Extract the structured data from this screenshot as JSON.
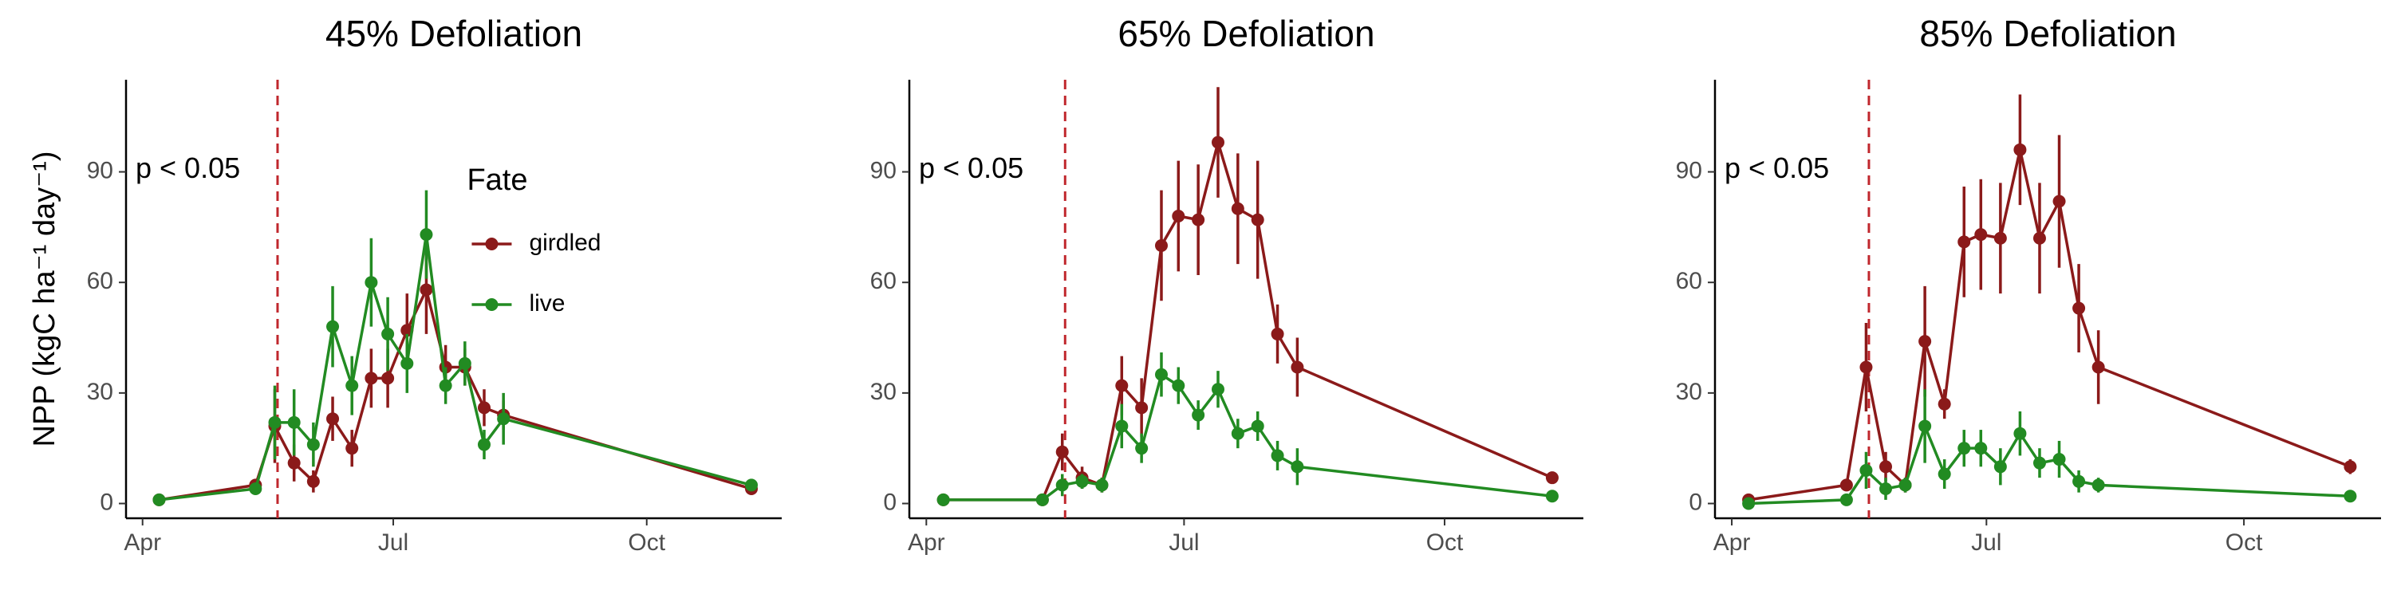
{
  "chart_data": [
    {
      "type": "line",
      "title": "45% Defoliation",
      "ylabel": "NPP (kgC ha⁻¹ day⁻¹)",
      "annotation": "p < 0.05",
      "vline": 140,
      "x": [
        97,
        132,
        139,
        146,
        153,
        160,
        167,
        174,
        180,
        187,
        194,
        201,
        208,
        215,
        222,
        312
      ],
      "xlim": [
        85,
        323
      ],
      "xticks": [
        {
          "value": 91,
          "label": "Apr"
        },
        {
          "value": 182,
          "label": "Jul"
        },
        {
          "value": 274,
          "label": "Oct"
        }
      ],
      "ylim": [
        -4,
        115
      ],
      "yticks": [
        0,
        30,
        60,
        90
      ],
      "legend": "right",
      "legend_title": "Fate",
      "series": [
        {
          "name": "girdled",
          "color": "#8b1a1a",
          "values": [
            1,
            5,
            21,
            11,
            6,
            23,
            15,
            34,
            34,
            47,
            58,
            37,
            37,
            26,
            24,
            4
          ],
          "errors": [
            1,
            1,
            10,
            5,
            3,
            6,
            5,
            8,
            8,
            10,
            12,
            6,
            5,
            5,
            4,
            1
          ]
        },
        {
          "name": "live",
          "color": "#228b22",
          "values": [
            1,
            4,
            22,
            22,
            16,
            48,
            32,
            60,
            46,
            38,
            73,
            32,
            38,
            16,
            23,
            5
          ],
          "errors": [
            1,
            1,
            10,
            9,
            6,
            11,
            8,
            12,
            10,
            8,
            12,
            5,
            6,
            4,
            7,
            1
          ]
        }
      ]
    },
    {
      "type": "line",
      "title": "65% Defoliation",
      "annotation": "p < 0.05",
      "vline": 140,
      "x": [
        97,
        132,
        139,
        146,
        153,
        160,
        167,
        174,
        180,
        187,
        194,
        201,
        208,
        215,
        222,
        312
      ],
      "xlim": [
        85,
        323
      ],
      "xticks": [
        {
          "value": 91,
          "label": "Apr"
        },
        {
          "value": 182,
          "label": "Jul"
        },
        {
          "value": 274,
          "label": "Oct"
        }
      ],
      "ylim": [
        -4,
        115
      ],
      "yticks": [
        0,
        30,
        60,
        90
      ],
      "series": [
        {
          "color": "#8b1a1a",
          "values": [
            1,
            1,
            14,
            7,
            5,
            32,
            26,
            70,
            78,
            77,
            98,
            80,
            77,
            46,
            37,
            7
          ],
          "errors": [
            1,
            1,
            5,
            3,
            2,
            8,
            8,
            15,
            15,
            15,
            15,
            15,
            16,
            8,
            8,
            1
          ]
        },
        {
          "color": "#228b22",
          "values": [
            1,
            1,
            5,
            6,
            5,
            21,
            15,
            35,
            32,
            24,
            31,
            19,
            21,
            13,
            10,
            2
          ],
          "errors": [
            1,
            1,
            3,
            2,
            2,
            6,
            4,
            6,
            5,
            4,
            5,
            4,
            4,
            4,
            5,
            1
          ]
        }
      ]
    },
    {
      "type": "line",
      "title": "85% Defoliation",
      "annotation": "p < 0.05",
      "vline": 140,
      "x": [
        97,
        132,
        139,
        146,
        153,
        160,
        167,
        174,
        180,
        187,
        194,
        201,
        208,
        215,
        222,
        312
      ],
      "xlim": [
        85,
        323
      ],
      "xticks": [
        {
          "value": 91,
          "label": "Apr"
        },
        {
          "value": 182,
          "label": "Jul"
        },
        {
          "value": 274,
          "label": "Oct"
        }
      ],
      "ylim": [
        -4,
        115
      ],
      "yticks": [
        0,
        30,
        60,
        90
      ],
      "series": [
        {
          "color": "#8b1a1a",
          "values": [
            1,
            5,
            37,
            10,
            5,
            44,
            27,
            71,
            73,
            72,
            96,
            72,
            82,
            53,
            37,
            10
          ],
          "errors": [
            1,
            1,
            12,
            4,
            2,
            15,
            4,
            15,
            15,
            15,
            15,
            15,
            18,
            12,
            10,
            2
          ]
        },
        {
          "color": "#228b22",
          "values": [
            0,
            1,
            9,
            4,
            5,
            21,
            8,
            15,
            15,
            10,
            19,
            11,
            12,
            6,
            5,
            2
          ],
          "errors": [
            1,
            1,
            5,
            3,
            2,
            10,
            4,
            5,
            5,
            5,
            6,
            4,
            5,
            3,
            2,
            1
          ]
        }
      ]
    }
  ]
}
